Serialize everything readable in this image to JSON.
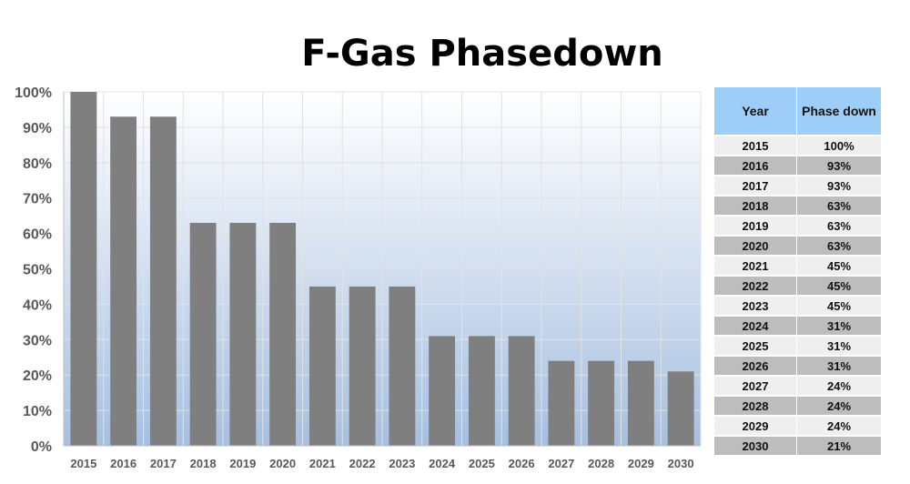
{
  "chart_data": {
    "type": "bar",
    "title": "F-Gas Phasedown",
    "categories": [
      "2015",
      "2016",
      "2017",
      "2018",
      "2019",
      "2020",
      "2021",
      "2022",
      "2023",
      "2024",
      "2025",
      "2026",
      "2027",
      "2028",
      "2029",
      "2030"
    ],
    "values": [
      100,
      93,
      93,
      63,
      63,
      63,
      45,
      45,
      45,
      31,
      31,
      31,
      24,
      24,
      24,
      21
    ],
    "ylim": [
      0,
      100
    ],
    "yticks": [
      "0%",
      "10%",
      "20%",
      "30%",
      "40%",
      "50%",
      "60%",
      "70%",
      "80%",
      "90%",
      "100%"
    ],
    "grid": true,
    "colors": {
      "bar": "#7f7f7f",
      "plot_top": "#ffffff",
      "plot_bottom": "#a6bfe0",
      "grid": "#e2e2e2"
    }
  },
  "table": {
    "headers": [
      "Year",
      "Phase down"
    ],
    "rows": [
      [
        "2015",
        "100%"
      ],
      [
        "2016",
        "93%"
      ],
      [
        "2017",
        "93%"
      ],
      [
        "2018",
        "63%"
      ],
      [
        "2019",
        "63%"
      ],
      [
        "2020",
        "63%"
      ],
      [
        "2021",
        "45%"
      ],
      [
        "2022",
        "45%"
      ],
      [
        "2023",
        "45%"
      ],
      [
        "2024",
        "31%"
      ],
      [
        "2025",
        "31%"
      ],
      [
        "2026",
        "31%"
      ],
      [
        "2027",
        "24%"
      ],
      [
        "2028",
        "24%"
      ],
      [
        "2029",
        "24%"
      ],
      [
        "2030",
        "21%"
      ]
    ],
    "header_color": "#9ecdf8"
  }
}
